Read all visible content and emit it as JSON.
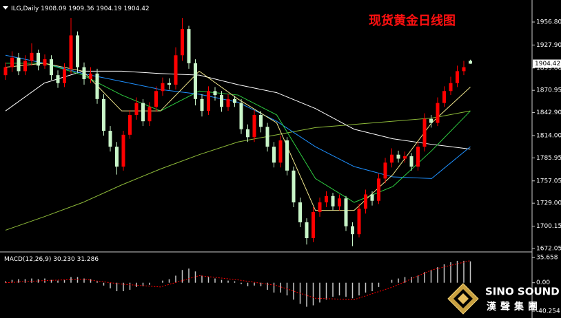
{
  "chart_data": [
    {
      "type": "candlestick",
      "symbol": "ILG,Daily",
      "title": "现货黄金日线图",
      "open": [
        1890,
        1900,
        1912,
        1895,
        1908,
        1918,
        1902,
        1910,
        1890,
        1880,
        1898,
        1940,
        1900,
        1885,
        1892,
        1860,
        1820,
        1800,
        1775,
        1815,
        1840,
        1855,
        1832,
        1850,
        1870,
        1880,
        1878,
        1915,
        1948,
        1905,
        1860,
        1845,
        1870,
        1865,
        1850,
        1860,
        1855,
        1822,
        1812,
        1840,
        1825,
        1800,
        1780,
        1808,
        1770,
        1730,
        1705,
        1685,
        1718,
        1730,
        1738,
        1725,
        1735,
        1700,
        1690,
        1722,
        1740,
        1732,
        1760,
        1780,
        1790,
        1785,
        1788,
        1775,
        1800,
        1835,
        1830,
        1855,
        1870,
        1880,
        1895,
        1908.09
      ],
      "high": [
        1906,
        1920,
        1918,
        1915,
        1930,
        1922,
        1916,
        1915,
        1896,
        1905,
        1962,
        1945,
        1906,
        1900,
        1898,
        1866,
        1826,
        1806,
        1820,
        1846,
        1862,
        1860,
        1856,
        1876,
        1887,
        1886,
        1925,
        1962,
        1952,
        1910,
        1866,
        1876,
        1875,
        1870,
        1866,
        1864,
        1860,
        1828,
        1846,
        1845,
        1830,
        1806,
        1814,
        1812,
        1775,
        1736,
        1710,
        1724,
        1736,
        1744,
        1742,
        1740,
        1738,
        1705,
        1728,
        1746,
        1744,
        1766,
        1786,
        1798,
        1795,
        1794,
        1792,
        1806,
        1842,
        1840,
        1862,
        1876,
        1888,
        1902,
        1908,
        1909.36
      ],
      "low": [
        1884,
        1894,
        1890,
        1890,
        1902,
        1896,
        1898,
        1884,
        1874,
        1875,
        1892,
        1894,
        1878,
        1880,
        1854,
        1814,
        1794,
        1765,
        1770,
        1810,
        1834,
        1826,
        1826,
        1844,
        1864,
        1872,
        1872,
        1908,
        1898,
        1852,
        1838,
        1840,
        1858,
        1844,
        1845,
        1850,
        1816,
        1806,
        1806,
        1818,
        1794,
        1774,
        1774,
        1764,
        1724,
        1699,
        1677,
        1680,
        1712,
        1724,
        1720,
        1720,
        1694,
        1675,
        1686,
        1716,
        1726,
        1728,
        1754,
        1774,
        1780,
        1780,
        1770,
        1770,
        1794,
        1824,
        1826,
        1850,
        1865,
        1875,
        1890,
        1904.19
      ],
      "close": [
        1900,
        1912,
        1895,
        1908,
        1918,
        1902,
        1910,
        1890,
        1880,
        1898,
        1940,
        1900,
        1885,
        1892,
        1860,
        1820,
        1800,
        1775,
        1815,
        1840,
        1855,
        1832,
        1850,
        1870,
        1880,
        1878,
        1915,
        1948,
        1905,
        1860,
        1845,
        1870,
        1865,
        1850,
        1860,
        1855,
        1822,
        1812,
        1840,
        1825,
        1800,
        1780,
        1808,
        1770,
        1730,
        1705,
        1685,
        1718,
        1730,
        1738,
        1725,
        1735,
        1700,
        1690,
        1722,
        1740,
        1732,
        1760,
        1780,
        1790,
        1785,
        1788,
        1775,
        1800,
        1835,
        1830,
        1855,
        1870,
        1880,
        1895,
        1900,
        1904.42
      ],
      "up_color": "#ff0000",
      "down_color": "#c8f5c8",
      "lines": [
        {
          "color": "#8fbc3a",
          "values": [
            1695,
            1712,
            1730,
            1752,
            1772,
            1790,
            1806,
            1815,
            1824,
            1828,
            1832,
            1836,
            1845
          ]
        },
        {
          "color": "#ffffff",
          "values": [
            1845,
            1880,
            1895,
            1895,
            1892,
            1890,
            1878,
            1868,
            1848,
            1822,
            1810,
            1803,
            1797
          ]
        },
        {
          "color": "#1e90ff",
          "values": [
            1915,
            1905,
            1892,
            1882,
            1872,
            1866,
            1856,
            1832,
            1800,
            1775,
            1762,
            1760,
            1800
          ]
        },
        {
          "color": "#2ecc40",
          "values": [
            1905,
            1905,
            1890,
            1865,
            1845,
            1870,
            1865,
            1840,
            1760,
            1730,
            1750,
            1795,
            1845
          ]
        },
        {
          "color": "#f0e68c",
          "values": [
            1900,
            1905,
            1895,
            1845,
            1845,
            1895,
            1860,
            1830,
            1720,
            1720,
            1765,
            1830,
            1875
          ]
        }
      ],
      "ylim": [
        1667.7,
        1984.5
      ],
      "yticks": [
        {
          "value": 1956.8,
          "label": "1956.80"
        },
        {
          "value": 1927.9,
          "label": "1927.90"
        },
        {
          "value": 1899,
          "label": "1899.00"
        },
        {
          "value": 1870.95,
          "label": "1870.95"
        },
        {
          "value": 1842.9,
          "label": "1842.90"
        },
        {
          "value": 1814,
          "label": "1814.00"
        },
        {
          "value": 1785.95,
          "label": "1785.95"
        },
        {
          "value": 1757.05,
          "label": "1757.05"
        },
        {
          "value": 1729,
          "label": "1729.00"
        },
        {
          "value": 1700.15,
          "label": "1700.15"
        },
        {
          "value": 1672.05,
          "label": "1672.05"
        }
      ]
    },
    {
      "type": "macd",
      "name": "MACD(12,26,9)",
      "readout": "30.230",
      "values": [
        2,
        4,
        5,
        5,
        6,
        5,
        6,
        4,
        3,
        4,
        8,
        8,
        6,
        5,
        2,
        -4,
        -8,
        -12,
        -12,
        -10,
        -6,
        -5,
        -3,
        0,
        3,
        5,
        10,
        18,
        20,
        16,
        10,
        8,
        6,
        4,
        3,
        2,
        -2,
        -5,
        -4,
        -5,
        -10,
        -14,
        -14,
        -18,
        -24,
        -30,
        -34,
        -32,
        -28,
        -24,
        -20,
        -18,
        -20,
        -22,
        -18,
        -14,
        -12,
        -6,
        0,
        4,
        6,
        8,
        8,
        10,
        15,
        18,
        22,
        26,
        29,
        31,
        31,
        30.23
      ],
      "signal": [
        0,
        3,
        5,
        -2,
        -6,
        10,
        4,
        -4,
        -22,
        -24,
        -6,
        18,
        31.286
      ],
      "color": "#c8c8c8",
      "signal_color": "#ff0000",
      "ylim": [
        -48,
        42.6
      ],
      "yticks": [
        35.658,
        {
          "value": 0,
          "label": "0.00"
        },
        -40.254
      ]
    }
  ],
  "logo": {
    "name": "SINO SOUND",
    "subtitle": "漢聲集團"
  }
}
